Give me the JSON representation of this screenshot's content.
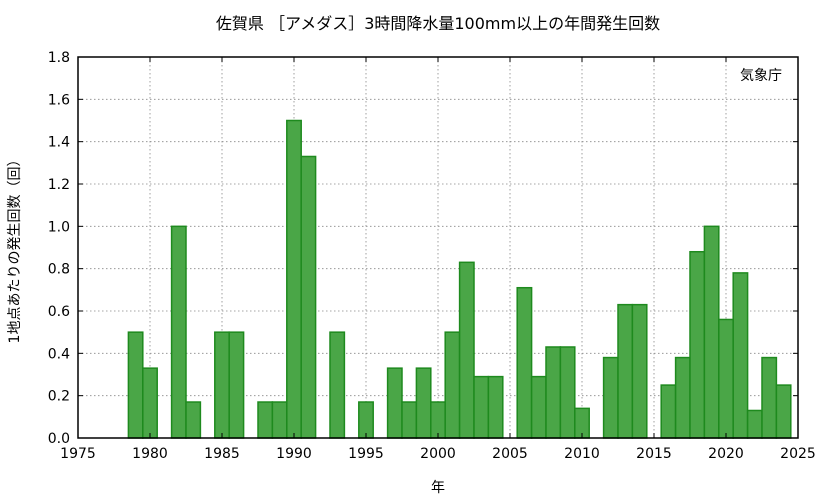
{
  "chart_data": {
    "type": "bar",
    "title": "佐賀県 ［アメダス］3時間降水量100mm以上の年間発生回数",
    "xlabel": "年",
    "ylabel": "1地点あたりの発生回数（回）",
    "annotation": "気象庁",
    "xlim": [
      1975,
      2025
    ],
    "ylim": [
      0,
      1.8
    ],
    "x_ticks": [
      1975,
      1980,
      1985,
      1990,
      1995,
      2000,
      2005,
      2010,
      2015,
      2020,
      2025
    ],
    "y_ticks": [
      "0.0",
      "0.2",
      "0.4",
      "0.6",
      "0.8",
      "1.0",
      "1.2",
      "1.4",
      "1.6",
      "1.8"
    ],
    "grid": true,
    "bar_color": "#4aa647",
    "bar_edge_color": "#1e8a1e",
    "x": [
      1979,
      1980,
      1982,
      1983,
      1985,
      1986,
      1988,
      1989,
      1990,
      1991,
      1993,
      1995,
      1997,
      1998,
      1999,
      2000,
      2001,
      2002,
      2003,
      2004,
      2006,
      2007,
      2008,
      2009,
      2010,
      2012,
      2013,
      2014,
      2016,
      2017,
      2018,
      2019,
      2020,
      2021,
      2022,
      2023,
      2024
    ],
    "values": [
      0.5,
      0.33,
      1.0,
      0.17,
      0.5,
      0.5,
      0.17,
      0.17,
      1.5,
      1.33,
      0.5,
      0.17,
      0.33,
      0.17,
      0.33,
      0.17,
      0.5,
      0.83,
      0.29,
      0.29,
      0.71,
      0.29,
      0.43,
      0.43,
      0.14,
      0.38,
      0.63,
      0.63,
      0.25,
      0.38,
      0.88,
      1.0,
      0.56,
      0.78,
      0.13,
      0.38,
      0.25
    ]
  }
}
